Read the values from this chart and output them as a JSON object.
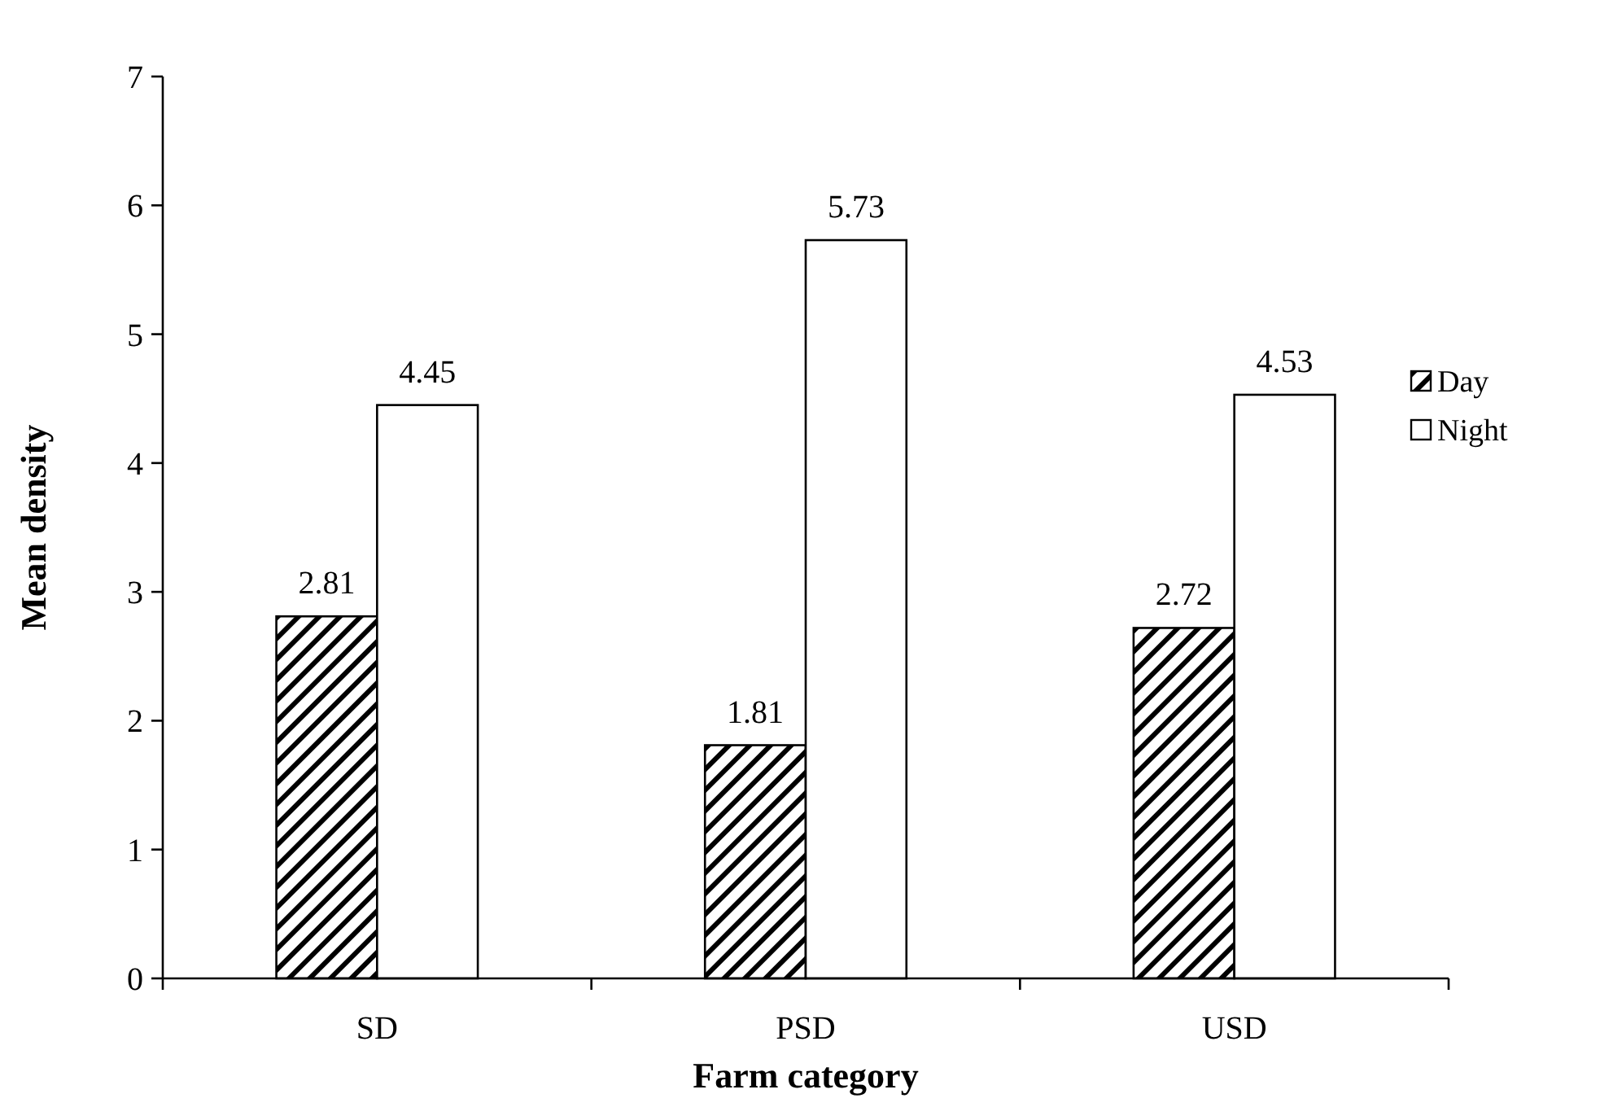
{
  "chart_data": {
    "type": "bar",
    "xlabel": "Farm category",
    "ylabel": "Mean density",
    "categories": [
      "SD",
      "PSD",
      "USD"
    ],
    "series": [
      {
        "name": "Day",
        "color": "#000000",
        "values": [
          2.81,
          1.81,
          2.72
        ]
      },
      {
        "name": "Night",
        "color": "#ffffff",
        "values": [
          4.45,
          5.73,
          4.53
        ]
      }
    ],
    "ylim": [
      0,
      7
    ],
    "yticks": [
      0,
      1,
      2,
      3,
      4,
      5,
      6,
      7
    ],
    "data_labels": true,
    "legend": "right",
    "grid": false
  }
}
